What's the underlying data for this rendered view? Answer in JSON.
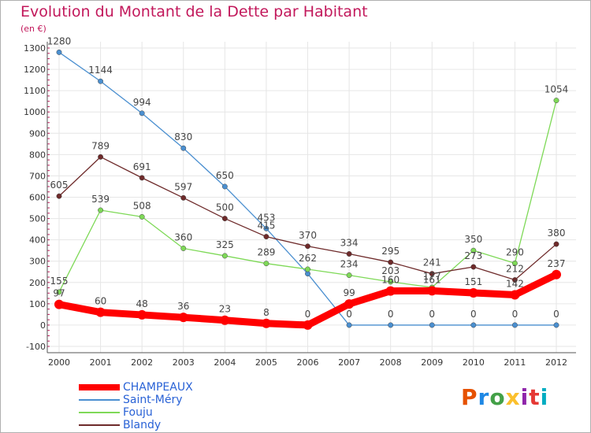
{
  "title": "Evolution du Montant de la Dette par Habitant",
  "subtitle": "(en €)",
  "logo": "Proxiti",
  "logo_colors": [
    "#e65100",
    "#1e88e5",
    "#43a047",
    "#fbc02d",
    "#8e24aa",
    "#e53935",
    "#00acc1"
  ],
  "chart_data": {
    "type": "line",
    "x": [
      "2000",
      "2001",
      "2002",
      "2003",
      "2004",
      "2005",
      "2006",
      "2007",
      "2008",
      "2009",
      "2010",
      "2011",
      "2012"
    ],
    "ylim": [
      -100,
      1300
    ],
    "yticks": [
      -100,
      0,
      100,
      200,
      300,
      400,
      500,
      600,
      700,
      800,
      900,
      1000,
      1100,
      1200,
      1300
    ],
    "grid": true,
    "legend_placement": "bottom-left",
    "series": [
      {
        "name": "Saint-Méry",
        "color": "#4a8fd0",
        "values": [
          1280,
          1144,
          994,
          830,
          650,
          453,
          241,
          0,
          0,
          0,
          0,
          0,
          0
        ],
        "labels": [
          "1280",
          "1144",
          "994",
          "830",
          "650",
          "453",
          "",
          "0",
          "0",
          "0",
          "0",
          "0",
          "0"
        ]
      },
      {
        "name": "Fouju",
        "color": "#7ed957",
        "values": [
          155,
          539,
          508,
          360,
          325,
          289,
          262,
          234,
          203,
          177,
          350,
          290,
          1054
        ],
        "labels": [
          "155",
          "539",
          "508",
          "360",
          "325",
          "289",
          "262",
          "234",
          "203",
          "177",
          "350",
          "290",
          "1054"
        ]
      },
      {
        "name": "Blandy",
        "color": "#6e2a2a",
        "values": [
          605,
          789,
          691,
          597,
          500,
          415,
          370,
          334,
          295,
          241,
          273,
          212,
          380
        ],
        "labels": [
          "605",
          "789",
          "691",
          "597",
          "500",
          "415",
          "370",
          "334",
          "295",
          "241",
          "273",
          "212",
          "380"
        ]
      },
      {
        "name": "CHAMPEAUX",
        "color": "#ff0000",
        "values": [
          97,
          60,
          48,
          36,
          23,
          8,
          0,
          99,
          160,
          161,
          151,
          142,
          237
        ],
        "labels": [
          "97",
          "60",
          "48",
          "36",
          "23",
          "8",
          "0",
          "99",
          "160",
          "161",
          "151",
          "142",
          "237"
        ]
      }
    ],
    "legend": [
      "CHAMPEAUX",
      "Saint-Méry",
      "Fouju",
      "Blandy"
    ]
  }
}
